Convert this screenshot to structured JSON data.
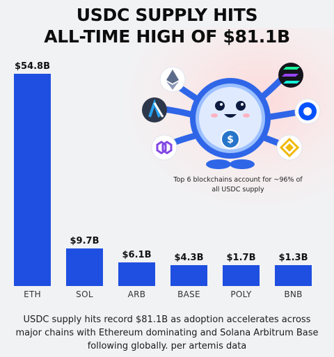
{
  "title_lines": [
    "USDC SUPPLY HITS",
    "ALL-TIME HIGH OF $81.1B"
  ],
  "annotation": "Top 6 blockchains account for ~96% of all USDC supply",
  "caption": "USDC supply hits record $81.1B as adoption accelerates across major chains with Ethereum dominating and Solana Arbitrum Base following globally. per artemis data",
  "mascot": {
    "icons": [
      "ethereum-icon",
      "solana-icon",
      "arbitrum-icon",
      "base-icon",
      "polygon-icon",
      "bnb-icon",
      "usdc-coin-icon"
    ]
  },
  "colors": {
    "bar": "#1f4fe0",
    "usdc_blue": "#2775ca"
  },
  "chart_data": {
    "type": "bar",
    "categories": [
      "ETH",
      "SOL",
      "ARB",
      "BASE",
      "POLY",
      "BNB"
    ],
    "values": [
      54.8,
      9.7,
      6.1,
      4.3,
      1.7,
      1.3
    ],
    "value_labels": [
      "$54.8B",
      "$9.7B",
      "$6.1B",
      "$4.3B",
      "$1.7B",
      "$1.3B"
    ],
    "title": "USDC SUPPLY HITS ALL-TIME HIGH OF $81.1B",
    "xlabel": "",
    "ylabel": "",
    "grid": false
  }
}
